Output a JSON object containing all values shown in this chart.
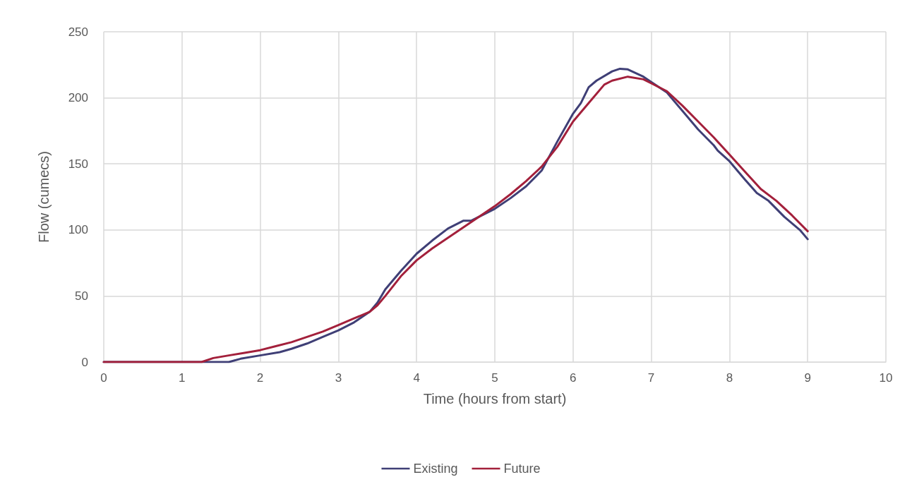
{
  "chart_data": {
    "type": "line",
    "xlabel": "Time (hours from start)",
    "ylabel": "Flow (cumecs)",
    "xlim": [
      0,
      10
    ],
    "xticks": [
      0,
      1,
      2,
      3,
      4,
      5,
      6,
      7,
      8,
      9,
      10
    ],
    "ylim": [
      0,
      250
    ],
    "yticks": [
      0,
      50,
      100,
      150,
      200,
      250
    ],
    "grid": true,
    "legend": "bottom",
    "marker": "none",
    "line_style": "solid",
    "series": [
      {
        "name": "Existing",
        "color": "#3f3f76",
        "x": [
          0,
          1.25,
          1.6,
          1.75,
          2,
          2.25,
          2.4,
          2.6,
          2.8,
          3,
          3.2,
          3.4,
          3.5,
          3.6,
          3.8,
          4,
          4.2,
          4.4,
          4.6,
          4.7,
          5,
          5.2,
          5.4,
          5.6,
          5.8,
          6,
          6.1,
          6.2,
          6.3,
          6.5,
          6.6,
          6.7,
          6.9,
          7,
          7.2,
          7.4,
          7.6,
          7.8,
          7.85,
          8,
          8.2,
          8.35,
          8.5,
          8.7,
          8.9,
          9
        ],
        "values": [
          0,
          0,
          0,
          2.5,
          5,
          7.5,
          10,
          14,
          19,
          24,
          30,
          38,
          45,
          55,
          69,
          82,
          92,
          101,
          107,
          107,
          116,
          124,
          133,
          145,
          167,
          188,
          196,
          208,
          213,
          220,
          222,
          221.5,
          216,
          212,
          204,
          190,
          176,
          164,
          160,
          152,
          138,
          128,
          122,
          110,
          100,
          93
        ]
      },
      {
        "name": "Future",
        "color": "#a3203b",
        "x": [
          0,
          1.25,
          1.4,
          1.6,
          1.8,
          2,
          2.2,
          2.4,
          2.6,
          2.8,
          3,
          3.2,
          3.4,
          3.5,
          3.6,
          3.8,
          4,
          4.2,
          4.4,
          4.6,
          4.8,
          5,
          5.2,
          5.4,
          5.6,
          5.8,
          6,
          6.2,
          6.4,
          6.5,
          6.7,
          6.9,
          7,
          7.2,
          7.4,
          7.6,
          7.8,
          8,
          8.2,
          8.4,
          8.6,
          8.8,
          9
        ],
        "values": [
          0,
          0,
          3,
          5,
          7,
          9,
          12,
          15,
          19,
          23,
          28,
          33,
          38,
          43,
          50,
          65,
          77,
          86,
          94,
          102,
          110,
          118,
          127,
          137,
          148,
          163,
          182,
          196,
          210,
          213,
          216,
          214,
          211,
          205,
          194,
          182,
          170,
          157,
          144,
          131,
          122,
          111,
          99
        ]
      }
    ]
  }
}
